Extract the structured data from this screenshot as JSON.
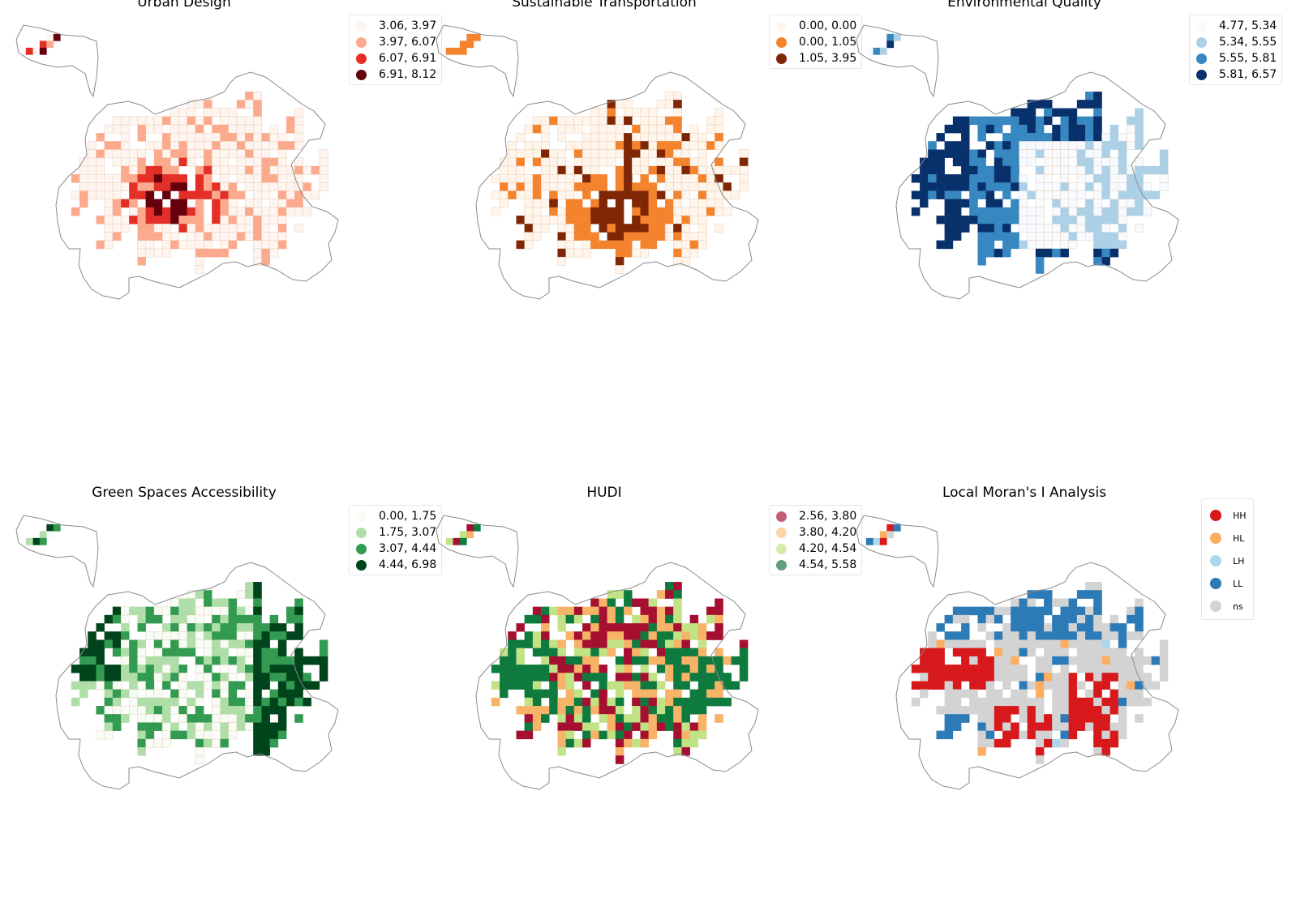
{
  "panels": [
    {
      "title": "Urban Design",
      "palette": [
        "#fff5f0",
        "#fcaa8e",
        "#e32f27",
        "#67000d"
      ],
      "legend": [
        {
          "label": "3.06, 3.97",
          "color": "#fff5f0"
        },
        {
          "label": "3.97, 6.07",
          "color": "#fcaa8e"
        },
        {
          "label": "6.07, 6.91",
          "color": "#e32f27"
        },
        {
          "label": "6.91, 8.12",
          "color": "#67000d"
        }
      ]
    },
    {
      "title": "Sustainable Transportation",
      "palette": [
        "#fff5eb",
        "#f4832e",
        "#7f2704"
      ],
      "legend": [
        {
          "label": "0.00, 0.00",
          "color": "#fff5eb"
        },
        {
          "label": "0.00, 1.05",
          "color": "#f4832e"
        },
        {
          "label": "1.05, 3.95",
          "color": "#7f2704"
        }
      ]
    },
    {
      "title": "Environmental Quality",
      "palette": [
        "#f7fbff",
        "#acd0e6",
        "#3787c0",
        "#08306b"
      ],
      "legend": [
        {
          "label": "4.77, 5.34",
          "color": "#f7fbff"
        },
        {
          "label": "5.34, 5.55",
          "color": "#acd0e6"
        },
        {
          "label": "5.55, 5.81",
          "color": "#3787c0"
        },
        {
          "label": "5.81, 6.57",
          "color": "#08306b"
        }
      ]
    },
    {
      "title": "Green Spaces Accessibility",
      "palette": [
        "#f7fcf5",
        "#b0dea9",
        "#329b51",
        "#00441b"
      ],
      "legend": [
        {
          "label": "0.00, 1.75",
          "color": "#f7fcf5"
        },
        {
          "label": "1.75, 3.07",
          "color": "#b0dea9"
        },
        {
          "label": "3.07, 4.44",
          "color": "#329b51"
        },
        {
          "label": "4.44, 6.98",
          "color": "#00441b"
        }
      ]
    },
    {
      "title": "HUDI",
      "palette": [
        "#a50f30",
        "#f7b367",
        "#c1e386",
        "#0e7a3e"
      ],
      "legend": [
        {
          "label": "2.56, 3.80",
          "color": "#c2607a"
        },
        {
          "label": "3.80, 4.20",
          "color": "#fad3a6"
        },
        {
          "label": "4.20, 4.54",
          "color": "#d4eba9"
        },
        {
          "label": "4.54, 5.58",
          "color": "#629f7c"
        }
      ]
    },
    {
      "title": "Local Moran's I Analysis",
      "palette": [
        "#d7191c",
        "#fdae61",
        "#abd9e9",
        "#2c7bb6",
        "#d3d3d3"
      ],
      "legend": [
        {
          "label": "HH",
          "color": "#d7191c"
        },
        {
          "label": "HL",
          "color": "#fdae61"
        },
        {
          "label": "LH",
          "color": "#abd9e9"
        },
        {
          "label": "LL",
          "color": "#2c7bb6"
        },
        {
          "label": "ns",
          "color": "#d3d3d3"
        }
      ]
    }
  ]
}
